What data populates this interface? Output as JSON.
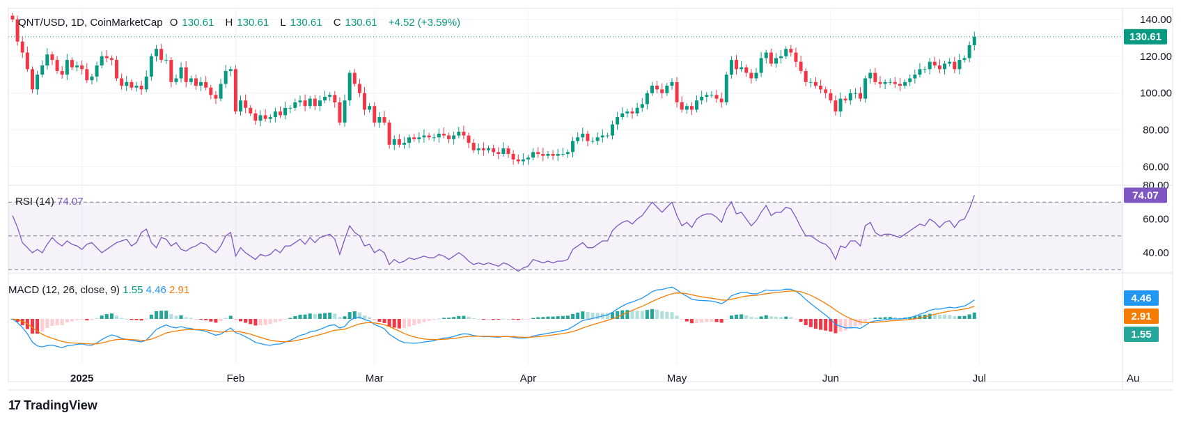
{
  "header": {
    "symbol": "QNT/USD, 1D, CoinMarketCap",
    "o_label": "O",
    "o_value": "130.61",
    "h_label": "H",
    "h_value": "130.61",
    "l_label": "L",
    "l_value": "130.61",
    "c_label": "C",
    "c_value": "130.61",
    "change": "+4.52 (+3.59%)"
  },
  "rsi_label": {
    "name": "RSI (14)",
    "value": "74.07"
  },
  "macd_label": {
    "name": "MACD (12, 26, close, 9)",
    "hist": "1.55",
    "macd": "4.46",
    "signal": "2.91"
  },
  "brand": {
    "name": "TradingView"
  },
  "colors": {
    "up": "#089981",
    "down": "#f23645",
    "rsi": "#7e57c2",
    "macd": "#2196f3",
    "signal": "#f57c00",
    "grid": "#f0f3fa"
  },
  "chart_data": [
    {
      "type": "candlestick",
      "x_tick_labels": [
        "2025",
        "Feb",
        "Mar",
        "Apr",
        "May",
        "Jun",
        "Jul",
        "Au"
      ],
      "y_ticks": [
        "140.00",
        "120.00",
        "100.00",
        "80.00",
        "60.00"
      ],
      "ylim": [
        50,
        146
      ],
      "last_price_label": "130.61",
      "closes": [
        140,
        128,
        122,
        113,
        102,
        110,
        115,
        121,
        118,
        112,
        110,
        118,
        114,
        115,
        113,
        107,
        109,
        115,
        120,
        119,
        118,
        108,
        104,
        106,
        103,
        104,
        102,
        109,
        120,
        124,
        118,
        118,
        106,
        108,
        114,
        106,
        108,
        104,
        106,
        103,
        99,
        97,
        105,
        112,
        113,
        90,
        96,
        92,
        89,
        85,
        88,
        86,
        87,
        90,
        88,
        92,
        92,
        95,
        96,
        93,
        97,
        93,
        96,
        98,
        99,
        95,
        84,
        96,
        111,
        105,
        100,
        91,
        93,
        84,
        87,
        84,
        72,
        75,
        72,
        73,
        76,
        75,
        76,
        77,
        76,
        76,
        78,
        77,
        75,
        77,
        79,
        77,
        73,
        69,
        70,
        69,
        70,
        68,
        67,
        70,
        67,
        64,
        63,
        64,
        65,
        68,
        67,
        66,
        67,
        66,
        67,
        67,
        68,
        74,
        76,
        78,
        74,
        74,
        76,
        77,
        77,
        83,
        87,
        89,
        90,
        89,
        92,
        94,
        100,
        104,
        102,
        100,
        104,
        106,
        95,
        91,
        93,
        91,
        96,
        98,
        99,
        99,
        97,
        95,
        110,
        118,
        113,
        114,
        111,
        108,
        111,
        119,
        122,
        116,
        119,
        120,
        124,
        122,
        117,
        112,
        106,
        106,
        104,
        102,
        100,
        96,
        90,
        97,
        96,
        100,
        100,
        97,
        108,
        111,
        106,
        105,
        106,
        106,
        105,
        104,
        106,
        108,
        110,
        113,
        113,
        117,
        115,
        113,
        116,
        117,
        113,
        118,
        119,
        126,
        130.61
      ],
      "volatility_note": ""
    },
    {
      "type": "line",
      "title": "RSI (14)",
      "y_ticks": [
        "80.00",
        "60.00",
        "40.00"
      ],
      "ylim": [
        28,
        80
      ],
      "bands": [
        70,
        50,
        30
      ],
      "values": [
        62,
        55,
        46,
        43,
        40,
        42,
        40,
        45,
        49,
        46,
        44,
        47,
        45,
        44,
        42,
        45,
        46,
        43,
        40,
        42,
        44,
        46,
        47,
        48,
        44,
        46,
        52,
        54,
        46,
        43,
        49,
        48,
        44,
        46,
        42,
        41,
        43,
        44,
        46,
        45,
        42,
        40,
        44,
        50,
        52,
        38,
        43,
        40,
        38,
        36,
        39,
        38,
        39,
        42,
        40,
        44,
        44,
        46,
        48,
        45,
        49,
        46,
        49,
        50,
        51,
        48,
        39,
        48,
        56,
        52,
        50,
        44,
        45,
        40,
        42,
        40,
        33,
        36,
        34,
        35,
        37,
        36,
        37,
        38,
        37,
        37,
        39,
        38,
        36,
        38,
        40,
        38,
        35,
        33,
        34,
        33,
        34,
        33,
        32,
        34,
        33,
        31,
        29,
        31,
        32,
        36,
        35,
        34,
        35,
        34,
        35,
        35,
        36,
        42,
        44,
        46,
        43,
        43,
        45,
        47,
        47,
        53,
        56,
        58,
        59,
        57,
        60,
        62,
        66,
        70,
        67,
        64,
        67,
        70,
        62,
        56,
        58,
        55,
        60,
        62,
        63,
        63,
        61,
        58,
        66,
        70,
        63,
        64,
        60,
        56,
        59,
        64,
        68,
        62,
        64,
        64,
        67,
        66,
        61,
        55,
        50,
        50,
        48,
        46,
        45,
        42,
        36,
        44,
        43,
        47,
        47,
        44,
        56,
        58,
        52,
        50,
        51,
        51,
        50,
        49,
        51,
        53,
        55,
        57,
        56,
        60,
        58,
        55,
        58,
        59,
        55,
        59,
        60,
        66,
        74.07
      ]
    },
    {
      "type": "macd",
      "title": "MACD (12, 26, close, 9)",
      "y_ticks": [
        "4.46",
        "2.91",
        "1.55"
      ],
      "ylim": [
        -10,
        10
      ],
      "last": {
        "histogram": 1.55,
        "macd": 4.46,
        "signal": 2.91
      }
    }
  ]
}
